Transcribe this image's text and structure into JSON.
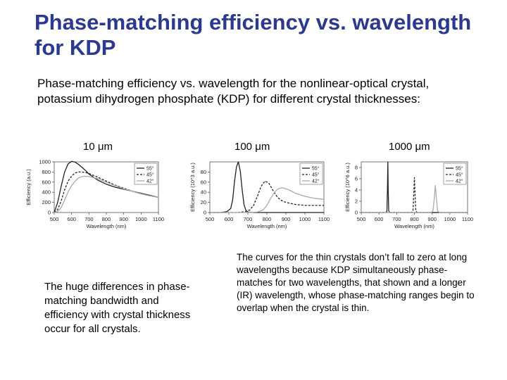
{
  "slide": {
    "title": "Phase-matching efficiency vs. wavelength for KDP",
    "intro": "Phase-matching efficiency vs. wavelength for the nonlinear-optical crystal, potassium dihydrogen phosphate (KDP) for different crystal thicknesses:",
    "note_left": "The huge differences in phase-matching bandwidth and efficiency with crystal thickness occur for all crystals.",
    "note_right": "The curves for the thin crystals don’t fall to zero at long wavelengths because KDP simultaneously phase-matches for two wavelengths, that shown and a longer (IR) wavelength, whose phase-matching ranges begin to overlap when the crystal is thin."
  },
  "chart_data": [
    {
      "type": "line",
      "panel_label": "10 μm",
      "xlabel": "Wavelength (nm)",
      "ylabel": "Efficiency (a.u.)",
      "xlim": [
        500,
        1100
      ],
      "ylim": [
        0,
        1000
      ],
      "xticks": [
        "500",
        "600",
        "700",
        "800",
        "900",
        "1000",
        "1100"
      ],
      "yticks": [
        "0",
        "200",
        "400",
        "600",
        "800",
        "1000"
      ],
      "legend_position": "top-right",
      "series": [
        {
          "name": "55°",
          "style": "solid",
          "color": "#222222",
          "x": [
            500,
            520,
            540,
            560,
            580,
            600,
            620,
            640,
            660,
            680,
            700,
            750,
            800,
            850,
            900,
            950,
            1000,
            1050,
            1100
          ],
          "y": [
            0,
            200,
            520,
            800,
            960,
            1010,
            995,
            950,
            890,
            830,
            760,
            640,
            560,
            500,
            460,
            420,
            380,
            340,
            300
          ]
        },
        {
          "name": "45°",
          "style": "dashed",
          "color": "#222222",
          "x": [
            500,
            520,
            540,
            560,
            580,
            600,
            620,
            640,
            660,
            680,
            700,
            750,
            800,
            850,
            900,
            950,
            1000,
            1050,
            1100
          ],
          "y": [
            0,
            60,
            230,
            450,
            620,
            720,
            780,
            800,
            800,
            790,
            770,
            700,
            620,
            540,
            480,
            420,
            370,
            330,
            300
          ]
        },
        {
          "name": "42°",
          "style": "solid",
          "color": "#aaaaaa",
          "x": [
            500,
            520,
            540,
            560,
            580,
            600,
            620,
            640,
            660,
            680,
            700,
            750,
            800,
            850,
            900,
            950,
            1000,
            1050,
            1100
          ],
          "y": [
            0,
            20,
            100,
            250,
            410,
            530,
            620,
            680,
            710,
            715,
            710,
            670,
            600,
            530,
            470,
            420,
            370,
            330,
            300
          ]
        }
      ]
    },
    {
      "type": "line",
      "panel_label": "100 μm",
      "xlabel": "Wavelength (nm)",
      "ylabel": "Efficiency (10^3 a.u.)",
      "xlim": [
        500,
        1100
      ],
      "ylim": [
        0,
        100
      ],
      "xticks": [
        "500",
        "600",
        "700",
        "800",
        "900",
        "1000",
        "1100"
      ],
      "yticks": [
        "0",
        "20",
        "40",
        "60",
        "80"
      ],
      "legend_position": "top-right",
      "series": [
        {
          "name": "55°",
          "style": "solid",
          "color": "#222222",
          "x": [
            500,
            560,
            590,
            610,
            620,
            630,
            640,
            650,
            660,
            670,
            680,
            690,
            700,
            730,
            800,
            900,
            1000,
            1100
          ],
          "y": [
            0,
            0,
            2,
            8,
            25,
            62,
            90,
            100,
            82,
            45,
            15,
            4,
            1,
            0,
            0,
            0,
            0,
            0
          ]
        },
        {
          "name": "45°",
          "style": "dashed",
          "color": "#222222",
          "x": [
            500,
            650,
            690,
            710,
            730,
            750,
            770,
            790,
            810,
            830,
            850,
            870,
            900,
            950,
            1000,
            1050,
            1100
          ],
          "y": [
            0,
            0,
            2,
            5,
            14,
            32,
            52,
            62,
            58,
            45,
            33,
            25,
            20,
            16,
            14,
            14,
            14
          ]
        },
        {
          "name": "42°",
          "style": "solid",
          "color": "#aaaaaa",
          "x": [
            500,
            700,
            750,
            780,
            800,
            820,
            840,
            860,
            880,
            900,
            920,
            950,
            1000,
            1050,
            1100
          ],
          "y": [
            0,
            0,
            1,
            5,
            14,
            28,
            40,
            47,
            49,
            47,
            44,
            38,
            32,
            28,
            26
          ]
        }
      ]
    },
    {
      "type": "line",
      "panel_label": "1000 μm",
      "xlabel": "Wavelength (nm)",
      "ylabel": "Efficiency (10^6 a.u.)",
      "xlim": [
        500,
        1100
      ],
      "ylim": [
        0,
        9
      ],
      "xticks": [
        "500",
        "600",
        "700",
        "800",
        "900",
        "1000",
        "1100"
      ],
      "yticks": [
        "0",
        "2",
        "4",
        "6",
        "8"
      ],
      "legend_position": "top-right",
      "series": [
        {
          "name": "55°",
          "style": "solid",
          "color": "#222222",
          "x": [
            500,
            640,
            645,
            648,
            650,
            652,
            655,
            660,
            1100
          ],
          "y": [
            0,
            0,
            0.3,
            4,
            9,
            4,
            0.3,
            0,
            0
          ]
        },
        {
          "name": "45°",
          "style": "dashed",
          "color": "#222222",
          "x": [
            500,
            785,
            792,
            796,
            800,
            804,
            808,
            815,
            1100
          ],
          "y": [
            0,
            0,
            0.3,
            3,
            6.2,
            3,
            0.3,
            0,
            0
          ]
        },
        {
          "name": "42°",
          "style": "solid",
          "color": "#aaaaaa",
          "x": [
            500,
            895,
            905,
            912,
            918,
            924,
            931,
            941,
            1100
          ],
          "y": [
            0,
            0,
            0.3,
            2.5,
            4.8,
            2.5,
            0.3,
            0,
            0
          ]
        }
      ]
    }
  ]
}
